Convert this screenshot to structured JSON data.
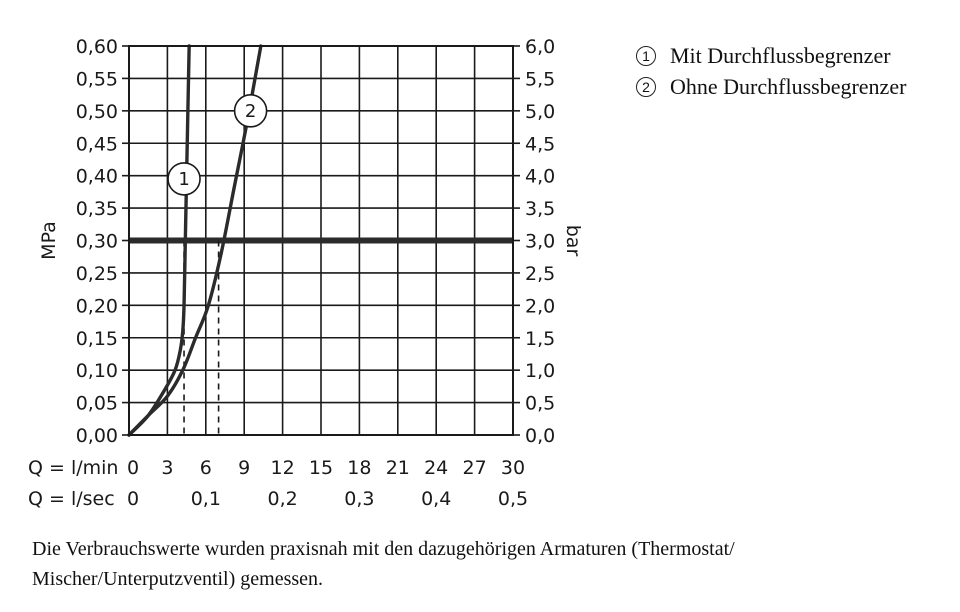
{
  "chart_data": {
    "type": "line",
    "y_left": {
      "label": "MPa",
      "ticks": [
        "0,00",
        "0,05",
        "0,10",
        "0,15",
        "0,20",
        "0,25",
        "0,30",
        "0,35",
        "0,40",
        "0,45",
        "0,50",
        "0,55",
        "0,60"
      ],
      "range": [
        0,
        0.6
      ]
    },
    "y_right": {
      "label": "bar",
      "ticks": [
        "0,0",
        "0,5",
        "1,0",
        "1,5",
        "2,0",
        "2,5",
        "3,0",
        "3,5",
        "4,0",
        "4,5",
        "5,0",
        "5,5",
        "6,0"
      ],
      "range": [
        0,
        6.0
      ]
    },
    "x_axes": [
      {
        "label": "Q = l/min",
        "ticks": [
          {
            "v": 0,
            "t": "0"
          },
          {
            "v": 3,
            "t": "3"
          },
          {
            "v": 6,
            "t": "6"
          },
          {
            "v": 9,
            "t": "9"
          },
          {
            "v": 12,
            "t": "12"
          },
          {
            "v": 15,
            "t": "15"
          },
          {
            "v": 18,
            "t": "18"
          },
          {
            "v": 21,
            "t": "21"
          },
          {
            "v": 24,
            "t": "24"
          },
          {
            "v": 27,
            "t": "27"
          },
          {
            "v": 30,
            "t": "30"
          }
        ]
      },
      {
        "label": "Q = l/sec",
        "ticks": [
          {
            "v": 0,
            "t": "0"
          },
          {
            "v": 6,
            "t": "0,1"
          },
          {
            "v": 12,
            "t": "0,2"
          },
          {
            "v": 18,
            "t": "0,3"
          },
          {
            "v": 24,
            "t": "0,4"
          },
          {
            "v": 30,
            "t": "0,5"
          }
        ]
      }
    ],
    "x_range": [
      0,
      30
    ],
    "grid": true,
    "reference_line": {
      "y": 0.3
    },
    "series": [
      {
        "name": "1",
        "x": [
          0,
          1.5,
          2.8,
          3.6,
          4.0,
          4.2,
          4.3,
          4.4,
          4.5,
          4.6,
          4.7
        ],
        "y": [
          0,
          0.03,
          0.07,
          0.1,
          0.13,
          0.16,
          0.2,
          0.3,
          0.4,
          0.5,
          0.6
        ]
      },
      {
        "name": "2",
        "x": [
          0,
          1.5,
          3.0,
          4.2,
          5.2,
          6.2,
          7.2,
          8.2,
          9.2,
          10.3
        ],
        "y": [
          0,
          0.03,
          0.06,
          0.1,
          0.15,
          0.2,
          0.28,
          0.38,
          0.48,
          0.6
        ]
      }
    ],
    "operating_points": [
      {
        "series": "1",
        "x": 4.3,
        "y": 0.3
      },
      {
        "series": "2",
        "x": 7.0,
        "y": 0.3
      }
    ],
    "markers": [
      {
        "text": "1",
        "x": 4.3,
        "y": 0.395
      },
      {
        "text": "2",
        "x": 9.5,
        "y": 0.5
      }
    ]
  },
  "legend": [
    {
      "num": "1",
      "label": "Mit Durchflussbegrenzer"
    },
    {
      "num": "2",
      "label": "Ohne Durchflussbegrenzer"
    }
  ],
  "caption": "Die Verbrauchswerte wurden praxisnah mit den dazugehörigen Armaturen (Thermostat/ Mischer/Unterputzventil) gemessen."
}
